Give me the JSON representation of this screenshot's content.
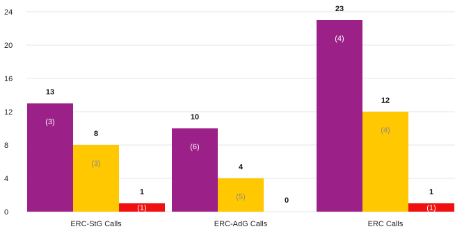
{
  "chart_data": {
    "type": "bar",
    "categories": [
      "ERC-StG Calls",
      "ERC-AdG Calls",
      "ERC Calls"
    ],
    "series": [
      {
        "color": "#9B2188",
        "label_color": "#ffffff",
        "values": [
          13,
          10,
          23
        ],
        "inner_labels": [
          "(3)",
          "(6)",
          "(4)"
        ]
      },
      {
        "color": "#FFC800",
        "label_color": "#8a8a8a",
        "values": [
          8,
          4,
          12
        ],
        "inner_labels": [
          "(3)",
          "(5)",
          "(4)"
        ]
      },
      {
        "color": "#F01010",
        "label_color": "#ffffff",
        "values": [
          1,
          0,
          1
        ],
        "inner_labels": [
          "(1)",
          "",
          "(1)"
        ]
      }
    ],
    "ylim": [
      0,
      24
    ],
    "yticks": [
      0,
      4,
      8,
      12,
      16,
      20,
      24
    ],
    "ytick_labels": [
      "0",
      "4",
      "8",
      "12",
      "16",
      "20",
      "24"
    ],
    "value_labels": [
      [
        "13",
        "10",
        "23"
      ],
      [
        "8",
        "4",
        "12"
      ],
      [
        "1",
        "0",
        "1"
      ]
    ],
    "grid": true,
    "legend": "none",
    "title": "",
    "xlabel": "",
    "ylabel": ""
  }
}
